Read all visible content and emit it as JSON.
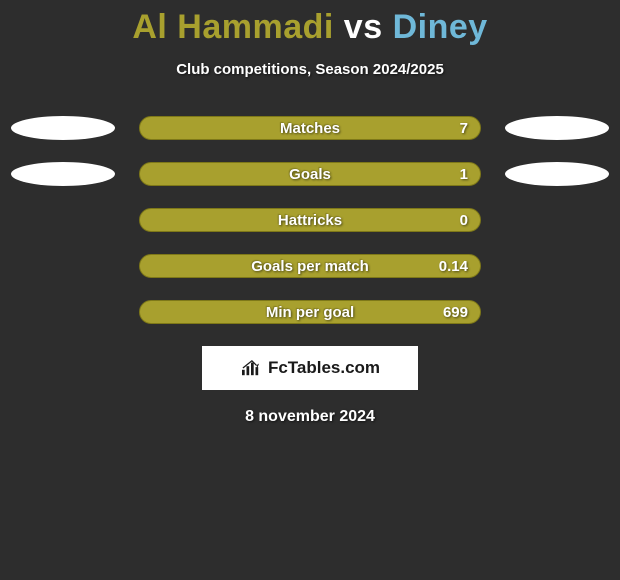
{
  "title": {
    "player1": "Al Hammadi",
    "vs": " vs ",
    "player2": "Diney",
    "color_player1": "#a8a02e",
    "color_vs": "#ffffff",
    "color_player2": "#6fb8d8"
  },
  "subtitle": "Club competitions, Season 2024/2025",
  "bar_color": "#a8a02e",
  "bar_border": "#7e7818",
  "rows": [
    {
      "label": "Matches",
      "value": "7",
      "left_ellipse": true,
      "right_ellipse": true
    },
    {
      "label": "Goals",
      "value": "1",
      "left_ellipse": true,
      "right_ellipse": true
    },
    {
      "label": "Hattricks",
      "value": "0",
      "left_ellipse": false,
      "right_ellipse": false
    },
    {
      "label": "Goals per match",
      "value": "0.14",
      "left_ellipse": false,
      "right_ellipse": false
    },
    {
      "label": "Min per goal",
      "value": "699",
      "left_ellipse": false,
      "right_ellipse": false
    }
  ],
  "logo_text": "FcTables.com",
  "date": "8 november 2024",
  "background_color": "#2d2d2d"
}
